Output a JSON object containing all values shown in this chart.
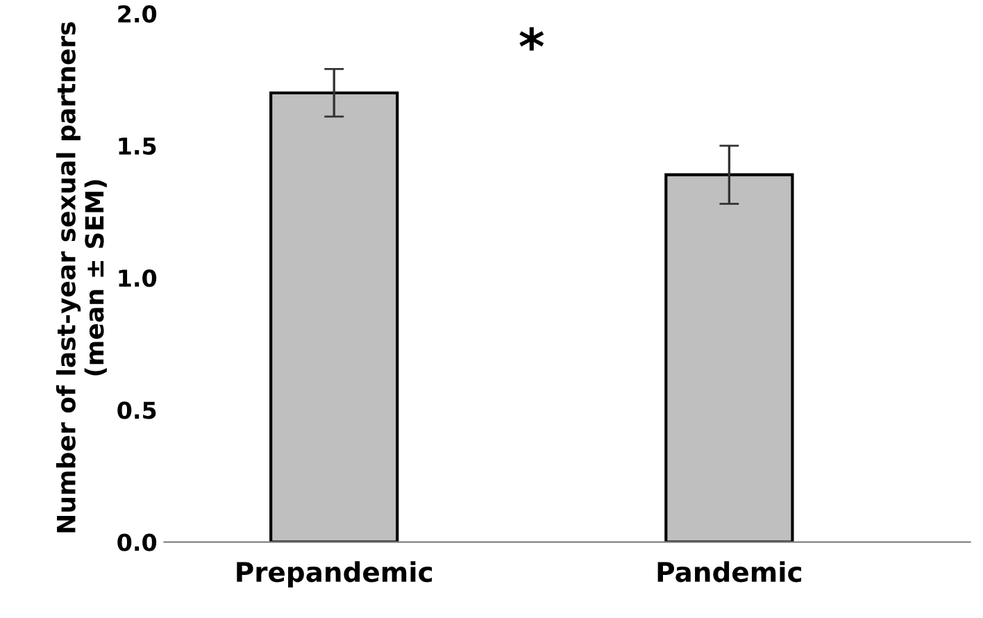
{
  "chart_data": {
    "type": "bar",
    "ylabel": "Number of last-year sexual partners (mean ± SEM)",
    "categories": [
      "Prepandemic",
      "Pandemic"
    ],
    "values": [
      1.7,
      1.39
    ],
    "errors": [
      0.09,
      0.11
    ],
    "color": "#bfbfbf",
    "ylim": [
      0,
      2
    ],
    "yticks": [
      {
        "value": 0,
        "label": "0.0"
      },
      {
        "value": 0.5,
        "label": "0.5"
      },
      {
        "value": 1,
        "label": "1.0"
      },
      {
        "value": 1.5,
        "label": "1.5"
      },
      {
        "value": 2,
        "label": "2.0"
      }
    ],
    "grid": false,
    "annotations": [
      "*"
    ]
  }
}
